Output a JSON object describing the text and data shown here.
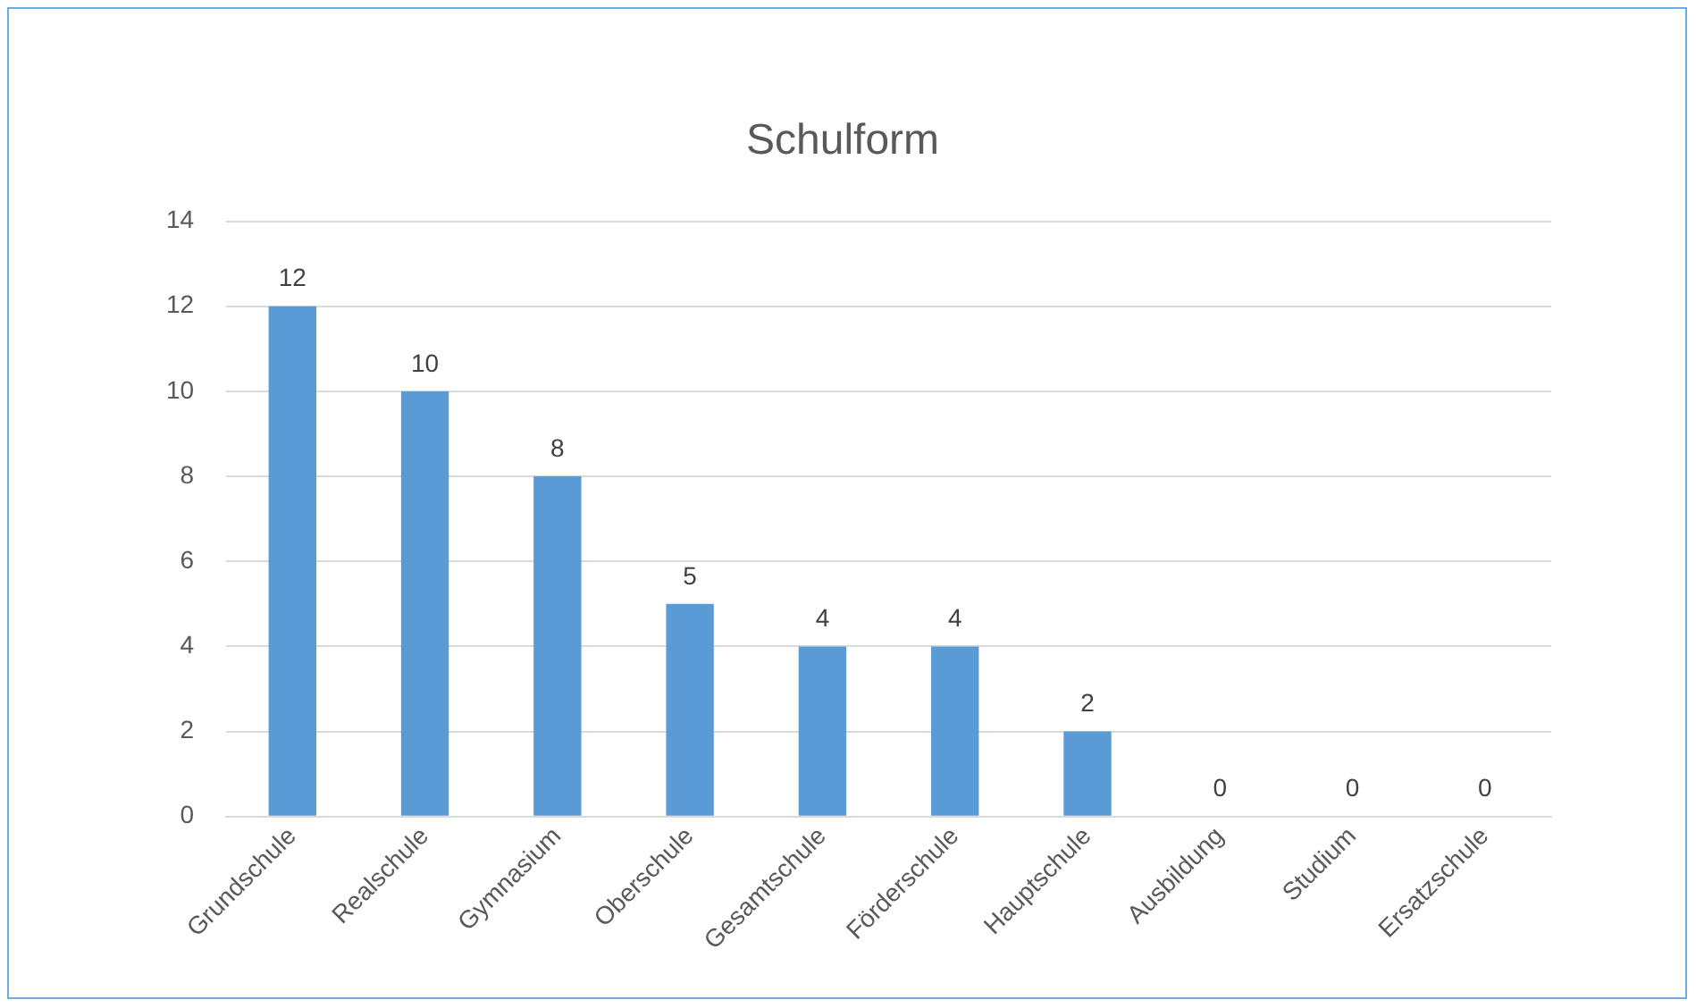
{
  "chart_data": {
    "type": "bar",
    "title": "Schulform",
    "categories": [
      "Grundschule",
      "Realschule",
      "Gymnasium",
      "Oberschule",
      "Gesamtschule",
      "Förderschule",
      "Hauptschule",
      "Ausbildung",
      "Studium",
      "Ersatzschule"
    ],
    "values": [
      12,
      10,
      8,
      5,
      4,
      4,
      2,
      0,
      0,
      0
    ],
    "color": "#5b9bd5",
    "ylim": [
      0,
      14
    ],
    "yticks": [
      0,
      2,
      4,
      6,
      8,
      10,
      12,
      14
    ],
    "grid": "y",
    "data_labels": true
  }
}
